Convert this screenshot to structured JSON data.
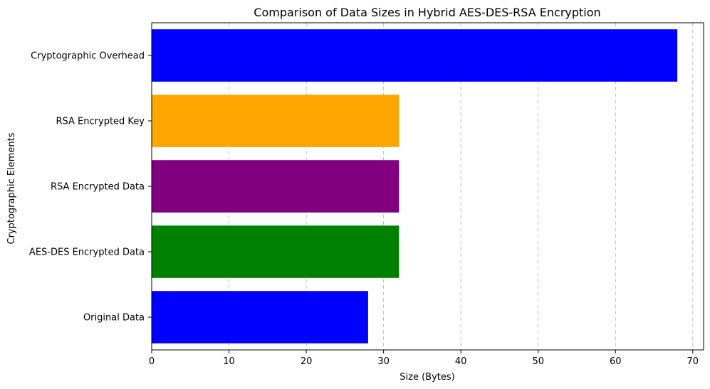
{
  "chart_data": {
    "type": "bar",
    "orientation": "horizontal",
    "title": "Comparison of Data Sizes in Hybrid AES-DES-RSA Encryption",
    "xlabel": "Size (Bytes)",
    "ylabel": "Cryptographic Elements",
    "categories": [
      "Original Data",
      "AES-DES Encrypted Data",
      "RSA Encrypted Data",
      "RSA Encrypted Key",
      "Cryptographic Overhead"
    ],
    "values": [
      28,
      32,
      32,
      32,
      68
    ],
    "colors": [
      "#0000ff",
      "#008000",
      "#800080",
      "#ffa500",
      "#0000ff"
    ],
    "xlim": [
      0,
      71.4
    ],
    "xticks": [
      0,
      10,
      20,
      30,
      40,
      50,
      60,
      70
    ],
    "grid": {
      "x": true,
      "y": false,
      "style": "dashed"
    },
    "legend": "none"
  }
}
